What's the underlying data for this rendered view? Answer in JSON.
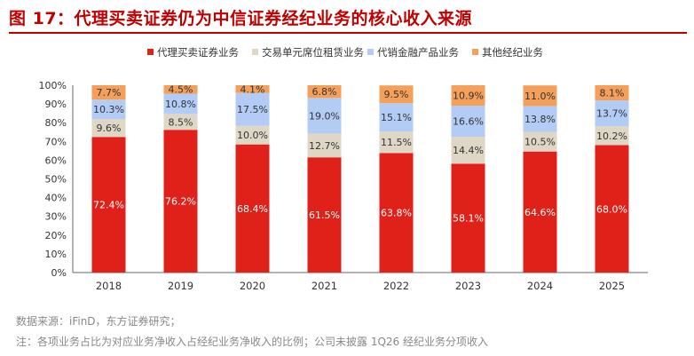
{
  "title": "图 17：代理买卖证券仍为中信证券经纪业务的核心收入来源",
  "source": "数据来源：iFinD，东方证券研究；",
  "note": "注：各项业务占比为对应业务净收入占经纪业务净收入的比例；公司未披露 1Q26 经纪业务分项收入",
  "chart_data": {
    "type": "bar",
    "stacked": true,
    "categories": [
      "2018",
      "2019",
      "2020",
      "2021",
      "2022",
      "2023",
      "2024",
      "2025"
    ],
    "series": [
      {
        "name": "代理买卖证券业务",
        "color": "#e0211a",
        "label_color": "#ffffff",
        "values": [
          72.4,
          76.2,
          68.4,
          61.5,
          63.8,
          58.1,
          64.6,
          68.0
        ],
        "labels": [
          "72.4%",
          "76.2%",
          "68.4%",
          "61.5%",
          "63.8%",
          "58.1%",
          "64.6%",
          "68.0%"
        ]
      },
      {
        "name": "交易单元席位租赁业务",
        "color": "#ded7c5",
        "label_color": "#333333",
        "values": [
          9.6,
          8.5,
          10.0,
          12.7,
          11.5,
          14.4,
          10.5,
          10.2
        ],
        "labels": [
          "9.6%",
          "8.5%",
          "10.0%",
          "12.7%",
          "11.5%",
          "14.4%",
          "10.5%",
          "10.2%"
        ]
      },
      {
        "name": "代销金融产品业务",
        "color": "#b3ccf5",
        "label_color": "#333333",
        "values": [
          10.3,
          10.8,
          17.5,
          19.0,
          15.1,
          16.6,
          13.8,
          13.7
        ],
        "labels": [
          "10.3%",
          "10.8%",
          "17.5%",
          "19.0%",
          "15.1%",
          "16.6%",
          "13.8%",
          "13.7%"
        ]
      },
      {
        "name": "其他经纪业务",
        "color": "#f5a05a",
        "label_color": "#333333",
        "values": [
          7.7,
          4.5,
          4.1,
          6.8,
          9.5,
          10.9,
          11.0,
          8.1
        ],
        "labels": [
          "7.7%",
          "4.5%",
          "4.1%",
          "6.8%",
          "9.5%",
          "10.9%",
          "11.0%",
          "8.1%"
        ]
      }
    ],
    "y_ticks": [
      "0%",
      "10%",
      "20%",
      "30%",
      "40%",
      "50%",
      "60%",
      "70%",
      "80%",
      "90%",
      "100%"
    ],
    "ylim": [
      0,
      100
    ],
    "legend_position": "top",
    "grid": false
  }
}
